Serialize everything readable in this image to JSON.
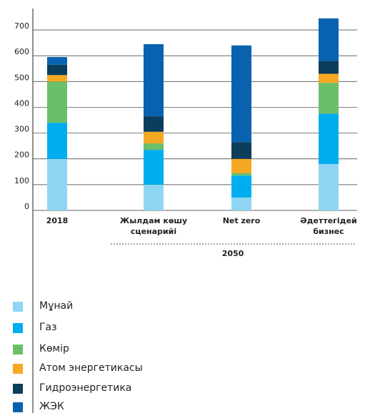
{
  "chart_data": {
    "type": "stacked-bar",
    "categories": [
      "2018",
      "Жылдам көшу сценарийі",
      "Net zero",
      "Әдеттегідей бизнес"
    ],
    "group_label": "2050",
    "series": [
      {
        "name": "Мұнай",
        "color": "#8fd6f4",
        "values": [
          200,
          100,
          50,
          180
        ]
      },
      {
        "name": "Газ",
        "color": "#00aeef",
        "values": [
          140,
          135,
          85,
          195
        ]
      },
      {
        "name": "Көмір",
        "color": "#6cbf6a",
        "values": [
          160,
          25,
          10,
          120
        ]
      },
      {
        "name": "Атом энергетикасы",
        "color": "#f7a823",
        "values": [
          25,
          45,
          55,
          35
        ]
      },
      {
        "name": "Гидроэнергетика",
        "color": "#0b3d5c",
        "values": [
          40,
          60,
          65,
          50
        ]
      },
      {
        "name": "ЖЭК",
        "color": "#0862b0",
        "values": [
          30,
          280,
          375,
          165
        ]
      }
    ],
    "ylim": [
      0,
      700
    ],
    "yticks": [
      0,
      100,
      200,
      300,
      400,
      500,
      600,
      700
    ],
    "grid": true
  }
}
